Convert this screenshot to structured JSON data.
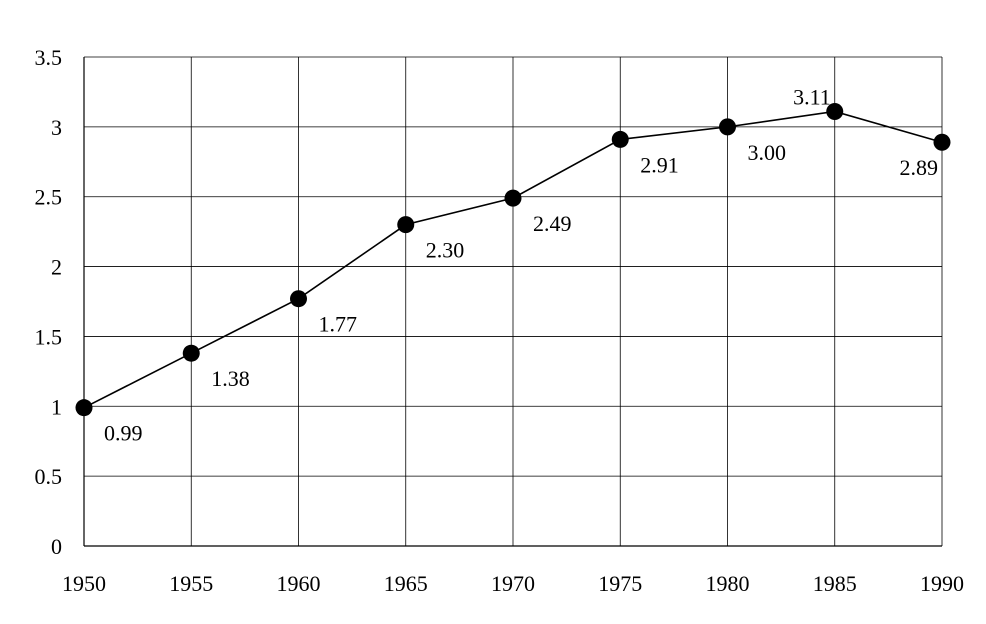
{
  "chart_data": {
    "type": "line",
    "title": "",
    "xlabel": "",
    "ylabel": "",
    "x": [
      1950,
      1955,
      1960,
      1965,
      1970,
      1975,
      1980,
      1985,
      1990
    ],
    "xlim": [
      1950,
      1990
    ],
    "ylim": [
      0,
      3.5
    ],
    "x_ticks": [
      "1950",
      "1955",
      "1960",
      "1965",
      "1970",
      "1975",
      "1980",
      "1985",
      "1990"
    ],
    "y_ticks": [
      "0",
      "0.5",
      "1",
      "1.5",
      "2",
      "2.5",
      "3",
      "3.5"
    ],
    "grid": true,
    "legend": "none",
    "series": [
      {
        "values": [
          0.99,
          1.38,
          1.77,
          2.3,
          2.49,
          2.91,
          3.0,
          3.11,
          2.89
        ],
        "labels": [
          "0.99",
          "1.38",
          "1.77",
          "2.30",
          "2.49",
          "2.91",
          "3.00",
          "3.11",
          "2.89"
        ],
        "color": "#000000",
        "marker": "circle"
      }
    ]
  }
}
